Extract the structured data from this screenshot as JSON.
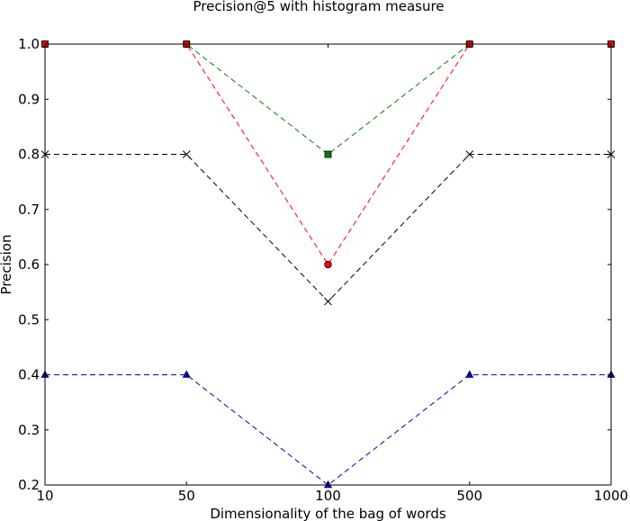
{
  "chart_data": {
    "type": "line",
    "title": "Precision@5 with histogram measure",
    "xlabel": "Dimensionality of the bag of words",
    "ylabel": "Precision",
    "categories": [
      "10",
      "50",
      "100",
      "500",
      "1000"
    ],
    "ylim": [
      0.2,
      1.0
    ],
    "yticks": [
      "0.2",
      "0.3",
      "0.4",
      "0.5",
      "0.6",
      "0.7",
      "0.8",
      "0.9",
      "1.0"
    ],
    "grid": false,
    "series": [
      {
        "color": "#008000",
        "marker": "square",
        "values": [
          1.0,
          1.0,
          0.8,
          1.0,
          1.0
        ]
      },
      {
        "color": "#ff0000",
        "marker": "circle",
        "values": [
          1.0,
          1.0,
          0.6,
          1.0,
          1.0
        ]
      },
      {
        "color": "#000000",
        "marker": "x",
        "values": [
          0.8,
          0.8,
          0.533,
          0.8,
          0.8
        ]
      },
      {
        "color": "#0000cc",
        "marker": "triangle",
        "values": [
          0.4,
          0.4,
          0.2,
          0.4,
          0.4
        ]
      }
    ]
  }
}
